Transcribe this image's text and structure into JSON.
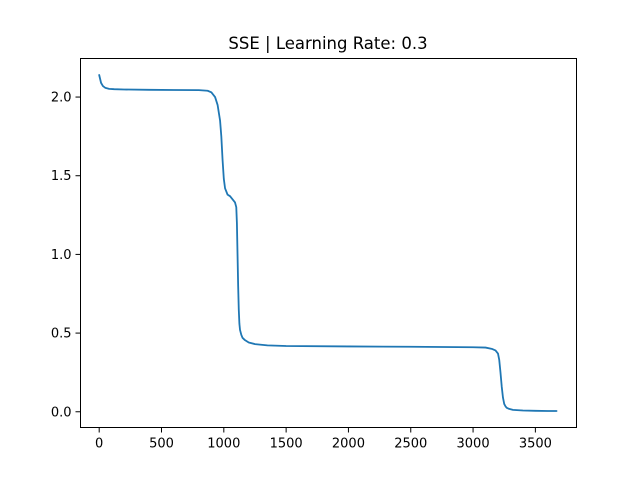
{
  "chart_data": {
    "type": "line",
    "title": "SSE | Learning Rate: 0.3",
    "xlabel": "",
    "ylabel": "",
    "xlim": [
      -150,
      3830
    ],
    "ylim": [
      -0.1,
      2.245
    ],
    "x_ticks": [
      0,
      500,
      1000,
      1500,
      2000,
      2500,
      3000,
      3500
    ],
    "x_tick_labels": [
      "0",
      "500",
      "1000",
      "1500",
      "2000",
      "2500",
      "3000",
      "3500"
    ],
    "y_ticks": [
      0.0,
      0.5,
      1.0,
      1.5,
      2.0
    ],
    "y_tick_labels": [
      "0.0",
      "0.5",
      "1.0",
      "1.5",
      "2.0"
    ],
    "grid": false,
    "series": [
      {
        "color": "#1f77b4",
        "x": [
          0,
          15,
          30,
          50,
          80,
          120,
          200,
          400,
          600,
          800,
          870,
          900,
          930,
          950,
          970,
          980,
          990,
          1000,
          1010,
          1030,
          1050,
          1070,
          1090,
          1100,
          1105,
          1110,
          1115,
          1120,
          1125,
          1130,
          1140,
          1150,
          1170,
          1200,
          1250,
          1350,
          1500,
          2000,
          2500,
          3000,
          3100,
          3150,
          3180,
          3200,
          3210,
          3220,
          3230,
          3240,
          3250,
          3260,
          3270,
          3290,
          3320,
          3400,
          3500,
          3600,
          3670
        ],
        "y": [
          2.14,
          2.09,
          2.07,
          2.058,
          2.052,
          2.05,
          2.048,
          2.046,
          2.045,
          2.044,
          2.04,
          2.03,
          2.0,
          1.95,
          1.85,
          1.75,
          1.6,
          1.48,
          1.42,
          1.38,
          1.37,
          1.35,
          1.33,
          1.3,
          1.2,
          1.0,
          0.8,
          0.65,
          0.56,
          0.52,
          0.49,
          0.47,
          0.455,
          0.44,
          0.43,
          0.422,
          0.418,
          0.415,
          0.413,
          0.41,
          0.408,
          0.4,
          0.39,
          0.37,
          0.33,
          0.25,
          0.16,
          0.09,
          0.05,
          0.035,
          0.025,
          0.018,
          0.012,
          0.008,
          0.006,
          0.005,
          0.005
        ]
      }
    ]
  }
}
